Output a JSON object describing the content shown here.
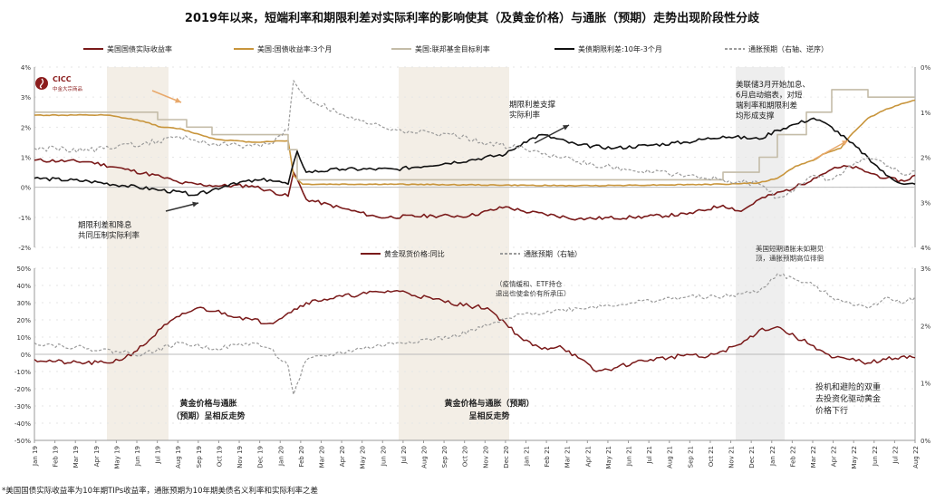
{
  "title": "2019年以来，短端利率和期限利差对实际利率的影响使其（及黄金价格）与通胀（预期）走势出现阶段性分歧",
  "footnote": "*美国国债实际收益率为10年期TIPs收益率，通胀预期为10年期美债名义利率和实际利率之差",
  "logo": {
    "name": "CICC",
    "subtitle": "中金大宗商品"
  },
  "colors": {
    "real_yield": "#7a1a1a",
    "tbill_3m": "#c8953c",
    "fed_funds": "#c4bca8",
    "term_spread": "#111111",
    "inflation_exp": "#9a9a9a",
    "gold": "#7a1a1a",
    "shade_beige": "#f3eee6",
    "shade_gray": "#eeeeee",
    "arrow": "#8a8a8a",
    "arrow_orange": "#e8a86a"
  },
  "x_axis": {
    "tick_labels": [
      "Jan 19",
      "Feb 19",
      "Mar 19",
      "Apr 19",
      "May 19",
      "Jun 19",
      "Jul 19",
      "Aug 19",
      "Sep 19",
      "Oct 19",
      "Nov 19",
      "Dec 19",
      "Jan 20",
      "Feb 20",
      "Mar 20",
      "Apr 20",
      "May 20",
      "Jun 20",
      "Jul 20",
      "Aug 20",
      "Sep 20",
      "Oct 20",
      "Nov 20",
      "Dec 20",
      "Jan 21",
      "Feb 21",
      "Mar 21",
      "Apr 21",
      "May 21",
      "Jun 21",
      "Jul 21",
      "Aug 21",
      "Sep 21",
      "Oct 21",
      "Nov 21",
      "Dec 21",
      "Jan 22",
      "Feb 22",
      "Mar 22",
      "Apr 22",
      "May 22",
      "Jun 22",
      "Jul 22",
      "Aug 22"
    ]
  },
  "chart_data": [
    {
      "type": "line",
      "legend": [
        "美国国债实际收益率",
        "美国:国债收益率:3个月",
        "美国:联邦基金目标利率",
        "美债期限利差:10年-3个月",
        "通胀预期（右轴、逆序）"
      ],
      "left_axis": {
        "ticks": [
          "4%",
          "3%",
          "2%",
          "1%",
          "0%",
          "-1%",
          "-2%"
        ],
        "ylim": [
          -2,
          4
        ]
      },
      "right_axis": {
        "ticks": [
          "0%",
          "1%",
          "2%",
          "3%",
          "4%"
        ],
        "ylim": [
          0,
          4
        ],
        "reversed": true
      },
      "x_range": [
        "Jan 19",
        "Sep 22"
      ],
      "series": [
        {
          "name": "美国国债实际收益率",
          "axis": "left",
          "x": [
            0,
            3,
            5,
            7,
            8,
            10,
            12,
            14,
            14.3,
            15,
            17,
            19,
            22,
            24,
            26,
            27,
            30,
            33,
            36,
            38,
            39,
            40,
            42,
            43,
            44,
            45,
            46,
            47,
            48,
            48.6
          ],
          "y": [
            0.9,
            0.85,
            0.6,
            0.35,
            0.15,
            0.05,
            0.05,
            -0.3,
            0.5,
            -0.4,
            -0.7,
            -1.0,
            -0.95,
            -0.95,
            -0.65,
            -0.8,
            -1.05,
            -1.0,
            -0.9,
            -0.6,
            -0.8,
            -0.4,
            0.0,
            0.3,
            0.6,
            0.7,
            0.5,
            0.3,
            0.2,
            0.4
          ]
        },
        {
          "name": "美国:国债收益率:3个月",
          "axis": "left",
          "x": [
            0,
            4,
            6,
            7,
            8,
            10,
            12,
            14,
            14.3,
            14.8,
            20,
            30,
            38,
            40,
            41,
            42,
            43,
            43.5,
            44,
            44.5,
            45,
            46,
            47,
            48,
            48.6
          ],
          "y": [
            2.4,
            2.4,
            2.2,
            2.0,
            1.95,
            1.6,
            1.5,
            1.55,
            0.4,
            0.1,
            0.1,
            0.05,
            0.1,
            0.15,
            0.3,
            0.7,
            0.9,
            1.1,
            1.2,
            1.3,
            1.7,
            2.3,
            2.6,
            2.8,
            2.9
          ]
        },
        {
          "name": "美国:联邦基金目标利率",
          "axis": "left",
          "x": [
            0,
            6.8,
            6.8,
            8.4,
            8.4,
            9.8,
            9.8,
            14,
            14,
            14.5,
            14.5,
            38,
            38,
            40,
            40,
            41,
            41,
            42.6,
            42.6,
            44,
            44,
            46,
            46,
            48.6
          ],
          "y": [
            2.5,
            2.5,
            2.25,
            2.25,
            2.0,
            2.0,
            1.75,
            1.75,
            1.25,
            1.25,
            0.25,
            0.25,
            0.5,
            0.5,
            1.0,
            1.0,
            1.75,
            1.75,
            2.5,
            2.5,
            3.25,
            3.25,
            3.0,
            3.0
          ]
        },
        {
          "name": "美债期限利差:10年-3个月",
          "axis": "left",
          "x": [
            0,
            3,
            5,
            7,
            9,
            11,
            13,
            14,
            14.5,
            15,
            17,
            20,
            24,
            26,
            27,
            28,
            30,
            32,
            34,
            36,
            38,
            40,
            41,
            42,
            43,
            44,
            45,
            46,
            47,
            48,
            48.6
          ],
          "y": [
            0.3,
            0.2,
            0.05,
            -0.1,
            -0.25,
            0.15,
            0.25,
            0.1,
            1.2,
            0.5,
            0.6,
            0.6,
            0.9,
            1.1,
            1.5,
            1.75,
            1.4,
            1.3,
            1.4,
            1.5,
            1.7,
            1.6,
            1.9,
            2.1,
            2.3,
            2.0,
            1.5,
            1.0,
            0.4,
            0.1,
            0.1
          ]
        },
        {
          "name": "通胀预期（右轴、逆序）",
          "axis": "right",
          "x": [
            0,
            3,
            6,
            8,
            10,
            12,
            13,
            14,
            14.3,
            15,
            18,
            20,
            23,
            25,
            27,
            30,
            33,
            36,
            38,
            40,
            41,
            42,
            43,
            44,
            45,
            46,
            47,
            48,
            48.6
          ],
          "y": [
            1.8,
            1.85,
            1.7,
            1.55,
            1.7,
            1.75,
            1.7,
            1.4,
            0.3,
            0.7,
            1.2,
            1.4,
            1.5,
            1.7,
            1.8,
            2.1,
            2.3,
            2.4,
            2.5,
            2.6,
            2.9,
            2.7,
            2.4,
            2.5,
            2.2,
            2.0,
            2.2,
            2.4,
            2.3
          ]
        }
      ],
      "annotations": [
        "期限利差和降息\n共同压制实际利率",
        "期限利差支撑\n实际利率",
        "美联储3月开始加息、\n6月启动缩表，对短\n端利率和期限利差\n均形成支撑"
      ]
    },
    {
      "type": "line",
      "legend": [
        "黄金现货价格:同比",
        "通胀预期（右轴）"
      ],
      "left_axis": {
        "ticks": [
          "50%",
          "40%",
          "30%",
          "20%",
          "10%",
          "0%",
          "-10%",
          "-20%",
          "-30%",
          "-40%",
          "-50%"
        ],
        "ylim": [
          -50,
          50
        ]
      },
      "right_axis": {
        "ticks": [
          "3%",
          "2%",
          "1%",
          "0%"
        ],
        "ylim": [
          0,
          3
        ]
      },
      "x_range": [
        "Jan 19",
        "Sep 22"
      ],
      "series": [
        {
          "name": "黄金现货价格:同比",
          "axis": "left",
          "x": [
            0,
            2,
            4,
            5,
            6,
            7,
            8,
            9,
            10,
            12,
            13,
            14,
            15,
            16,
            18,
            20,
            22,
            24,
            25,
            26,
            27,
            28,
            29,
            30,
            31,
            32,
            33,
            34,
            35,
            36,
            37,
            38,
            39,
            40,
            41,
            42,
            43,
            44,
            45,
            46,
            47,
            48,
            48.6
          ],
          "y": [
            -3,
            -5,
            -5,
            -2,
            5,
            15,
            22,
            27,
            25,
            20,
            18,
            24,
            30,
            32,
            35,
            37,
            32,
            28,
            27,
            18,
            8,
            3,
            5,
            -2,
            -10,
            -8,
            -5,
            -3,
            -2,
            0,
            -2,
            2,
            6,
            14,
            16,
            10,
            5,
            -2,
            -3,
            -5,
            -3,
            -1,
            -2
          ]
        },
        {
          "name": "通胀预期（右轴）",
          "axis": "right",
          "x": [
            0,
            3,
            6,
            8,
            10,
            12,
            13,
            14,
            14.3,
            15,
            18,
            20,
            23,
            25,
            27,
            30,
            33,
            36,
            38,
            40,
            41,
            42,
            43,
            44,
            45,
            46,
            47,
            48,
            48.6
          ],
          "y": [
            1.7,
            1.6,
            1.5,
            1.7,
            1.6,
            1.7,
            1.6,
            1.3,
            0.8,
            1.4,
            1.6,
            1.7,
            1.8,
            2.0,
            2.2,
            2.3,
            2.4,
            2.5,
            2.5,
            2.6,
            2.9,
            2.8,
            2.7,
            2.5,
            2.4,
            2.3,
            2.5,
            2.4,
            2.5
          ]
        }
      ],
      "annotations": [
        "（疫情缓和、ETF持仓\n退出也使金价有所承压）",
        "美国短期通胀未如期见\n顶，通胀预期高位徘徊",
        "黄金价格与通胀\n（预期）呈相反走势",
        "黄金价格与通胀（预期）\n呈相反走势",
        "投机和避险的双重\n去投资化驱动黄金\n价格下行"
      ]
    }
  ],
  "shaded_regions": [
    {
      "from": 4,
      "to": 7.4,
      "color": "shade_beige"
    },
    {
      "from": 20.1,
      "to": 26.2,
      "color": "shade_beige"
    },
    {
      "from": 38.7,
      "to": 41.4,
      "color": "shade_gray"
    }
  ]
}
